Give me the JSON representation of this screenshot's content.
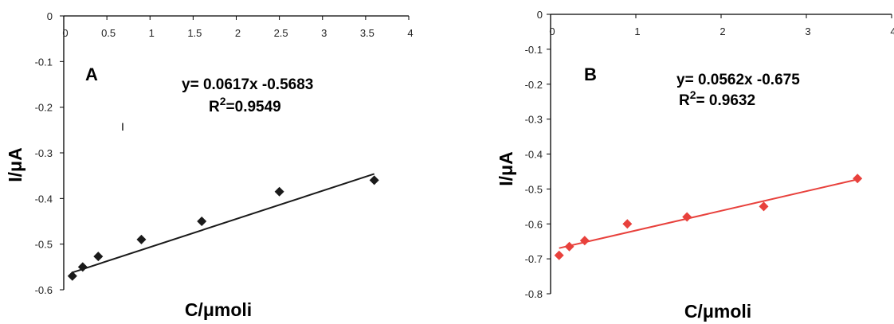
{
  "chart_data": [
    {
      "type": "scatter",
      "panel_label": "A",
      "xlabel": "C/μmoli",
      "ylabel": "I/μA",
      "xlim": [
        0,
        4
      ],
      "ylim": [
        -0.6,
        0
      ],
      "x_ticks": [
        "0",
        "0.5",
        "1",
        "1.5",
        "2",
        "2.5",
        "3",
        "3.5",
        "4"
      ],
      "y_ticks": [
        "0",
        "-0.1",
        "-0.2",
        "-0.3",
        "-0.4",
        "-0.5",
        "-0.6"
      ],
      "x_axis_position": "top",
      "grid": false,
      "legend": "none",
      "marker": "diamond",
      "color": "#1a1a1a",
      "series": [
        {
          "x": [
            0.1,
            0.22,
            0.4,
            0.9,
            1.6,
            2.5,
            3.6
          ],
          "y": [
            -0.57,
            -0.55,
            -0.527,
            -0.49,
            -0.45,
            -0.385,
            -0.36
          ]
        }
      ],
      "trendline": {
        "slope": 0.0617,
        "intercept": -0.5683,
        "x_range": [
          0.1,
          3.6
        ]
      },
      "equation": "y= 0.0617x -0.5683",
      "r2_prefix": "R",
      "r2_sup": "2",
      "r2_value": "=0.9549",
      "stray_mark": "I"
    },
    {
      "type": "scatter",
      "panel_label": "B",
      "xlabel": "C/μmoli",
      "ylabel": "I/μA",
      "xlim": [
        0,
        4
      ],
      "ylim": [
        -0.8,
        0
      ],
      "x_ticks": [
        "0",
        "1",
        "2",
        "3",
        "4"
      ],
      "y_ticks": [
        "0",
        "-0.1",
        "-0.2",
        "-0.3",
        "-0.4",
        "-0.5",
        "-0.6",
        "-0.7",
        "-0.8"
      ],
      "x_axis_position": "top",
      "grid": false,
      "legend": "none",
      "marker": "diamond",
      "color": "#e8413c",
      "series": [
        {
          "x": [
            0.1,
            0.22,
            0.4,
            0.9,
            1.6,
            2.5,
            3.6
          ],
          "y": [
            -0.69,
            -0.665,
            -0.648,
            -0.6,
            -0.58,
            -0.55,
            -0.47
          ]
        }
      ],
      "trendline": {
        "slope": 0.0562,
        "intercept": -0.675,
        "x_range": [
          0.1,
          3.6
        ]
      },
      "equation": "y= 0.0562x -0.675",
      "r2_prefix": "R",
      "r2_sup": "2",
      "r2_value": "= 0.9632"
    }
  ]
}
